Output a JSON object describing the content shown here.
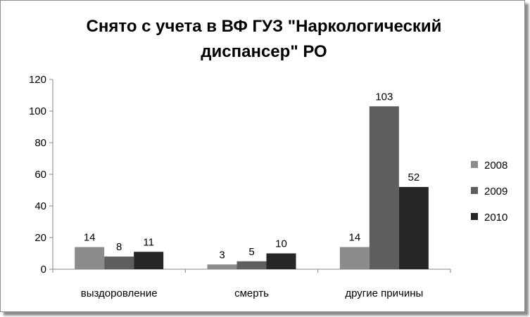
{
  "chart_data": {
    "type": "bar",
    "title_lines": [
      "Снято с учета в ВФ ГУЗ \"Наркологический",
      "диспансер\" РО"
    ],
    "categories": [
      "выздоровление",
      "смерть",
      "другие причины"
    ],
    "series": [
      {
        "name": "2008",
        "values": [
          14,
          3,
          14
        ],
        "color": "#8c8c8c"
      },
      {
        "name": "2009",
        "values": [
          8,
          5,
          103
        ],
        "color": "#5e5e5e"
      },
      {
        "name": "2010",
        "values": [
          11,
          10,
          52
        ],
        "color": "#262626"
      }
    ],
    "ylim": [
      0,
      120
    ],
    "yticks": [
      "0",
      "20",
      "40",
      "60",
      "80",
      "100",
      "120"
    ],
    "grid": false,
    "legend_position": "right"
  }
}
